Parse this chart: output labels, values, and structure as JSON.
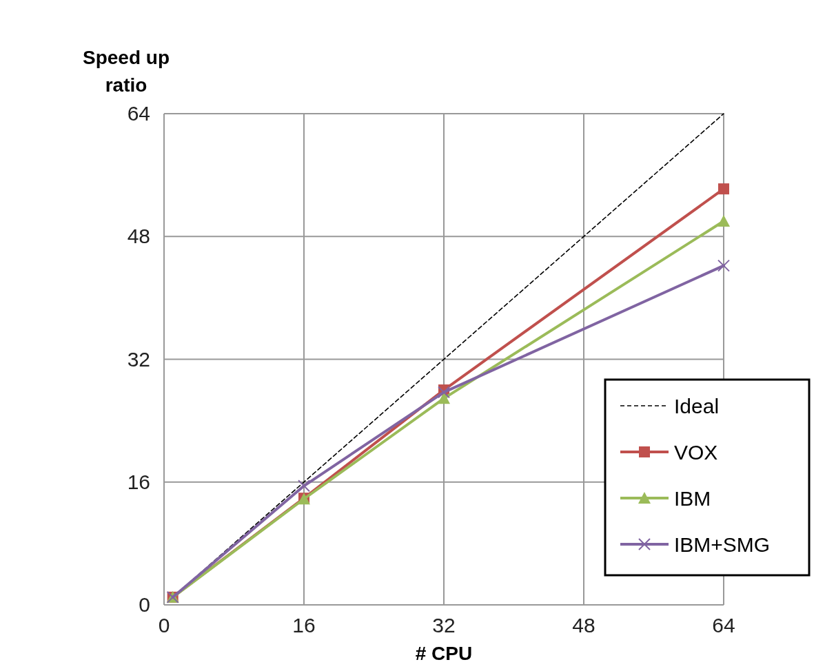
{
  "chart_data": {
    "type": "line",
    "xlabel": "# CPU",
    "ylabel": "Speed up ratio",
    "x": [
      1,
      16,
      32,
      64
    ],
    "xlim": [
      0,
      64
    ],
    "xticks": [
      0,
      16,
      32,
      48,
      64
    ],
    "ylim": [
      0,
      64
    ],
    "yticks": [
      0,
      16,
      32,
      48,
      64
    ],
    "grid": true,
    "legend": "bottom right",
    "series": [
      {
        "name": "Ideal",
        "color": "#000000",
        "x": [
          1,
          64
        ],
        "values": [
          1,
          64
        ],
        "line_style": "dashed",
        "marker": "none"
      },
      {
        "name": "VOX",
        "color": "#c0504d",
        "values": [
          1,
          13.9,
          28,
          54.2
        ],
        "line_style": "solid",
        "marker": "square"
      },
      {
        "name": "IBM",
        "color": "#9bbb59",
        "values": [
          1,
          13.8,
          26.9,
          50
        ],
        "line_style": "solid",
        "marker": "triangle"
      },
      {
        "name": "IBM+SMG",
        "color": "#8064a2",
        "values": [
          1,
          15.5,
          27.7,
          44.2
        ],
        "line_style": "solid",
        "marker": "cross"
      }
    ]
  }
}
